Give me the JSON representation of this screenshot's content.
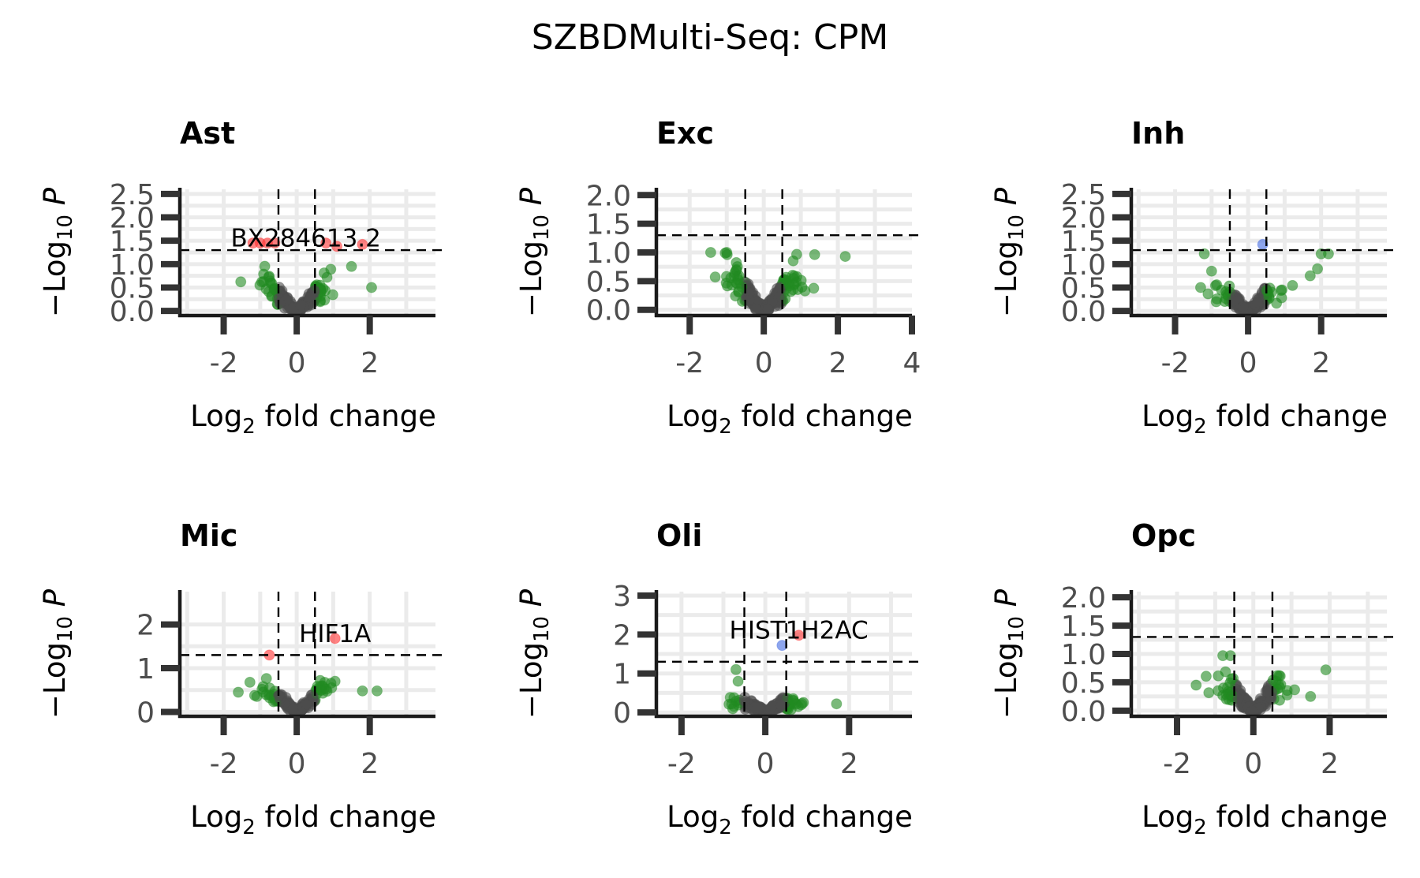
{
  "title": "SZBDMulti-Seq: CPM",
  "colors": {
    "grid": "#ebebeb",
    "axis": "#1a1a1a",
    "tick_label": "#4d4d4d",
    "ns": "#4d4d4d",
    "log2fc_only": "#228b22",
    "p_only": "#4169e1",
    "p_and_log2fc": "#ff3030"
  },
  "chart_data": [
    {
      "type": "scatter",
      "title": "Ast",
      "xlabel": "Log2 fold change",
      "ylabel": "-Log10 P",
      "xlim": [
        -3.2,
        3.8
      ],
      "ylim": [
        -0.1,
        2.6
      ],
      "xticks": [
        "-2",
        "0",
        "2"
      ],
      "xtick_values": [
        -2,
        0,
        2
      ],
      "yticks": [
        "0.0",
        "0.5",
        "1.0",
        "1.5",
        "2.0",
        "2.5"
      ],
      "ytick_values": [
        0,
        0.5,
        1.0,
        1.5,
        2.0,
        2.5
      ],
      "fc_cutoff": 0.5,
      "p_cutoff": 1.3,
      "labels": [
        {
          "text": "BX284613.2",
          "x": 0.25,
          "y": 1.38
        }
      ],
      "highlights": [
        {
          "x": -1.2,
          "y": 1.45,
          "group": "p_and_log2fc"
        },
        {
          "x": -1.0,
          "y": 1.45,
          "group": "p_and_log2fc"
        },
        {
          "x": -0.8,
          "y": 1.45,
          "group": "p_and_log2fc"
        },
        {
          "x": -0.6,
          "y": 1.45,
          "group": "p_and_log2fc"
        },
        {
          "x": 0.8,
          "y": 1.45,
          "group": "p_and_log2fc"
        },
        {
          "x": 1.1,
          "y": 1.38,
          "group": "p_and_log2fc"
        },
        {
          "x": 1.8,
          "y": 1.42,
          "group": "p_and_log2fc"
        },
        {
          "x": 2.05,
          "y": 0.5,
          "group": "log2fc_only"
        },
        {
          "x": 1.5,
          "y": 0.95,
          "group": "log2fc_only"
        }
      ],
      "cloud": {
        "spread": 0.8,
        "maxFC": 1.8,
        "maxP": 1.05,
        "n": 190
      }
    },
    {
      "type": "scatter",
      "title": "Exc",
      "xlabel": "Log2 fold change",
      "ylabel": "-Log10 P",
      "xlim": [
        -2.9,
        4.0
      ],
      "ylim": [
        -0.1,
        2.1
      ],
      "xticks": [
        "-2",
        "0",
        "2",
        "4"
      ],
      "xtick_values": [
        -2,
        0,
        2,
        4
      ],
      "yticks": [
        "0.0",
        "0.5",
        "1.0",
        "1.5",
        "2.0"
      ],
      "ytick_values": [
        0,
        0.5,
        1.0,
        1.5,
        2.0
      ],
      "fc_cutoff": 0.5,
      "p_cutoff": 1.3,
      "labels": [],
      "highlights": [
        {
          "x": 2.2,
          "y": 0.93,
          "group": "log2fc_only"
        },
        {
          "x": -1.0,
          "y": 1.0,
          "group": "log2fc_only"
        }
      ],
      "cloud": {
        "spread": 0.9,
        "maxFC": 1.8,
        "maxP": 1.02,
        "n": 230
      }
    },
    {
      "type": "scatter",
      "title": "Inh",
      "xlabel": "Log2 fold change",
      "ylabel": "-Log10 P",
      "xlim": [
        -3.2,
        3.8
      ],
      "ylim": [
        -0.1,
        2.6
      ],
      "xticks": [
        "-2",
        "0",
        "2"
      ],
      "xtick_values": [
        -2,
        0,
        2
      ],
      "yticks": [
        "0.0",
        "0.5",
        "1.0",
        "1.5",
        "2.0",
        "2.5"
      ],
      "ytick_values": [
        0,
        0.5,
        1.0,
        1.5,
        2.0,
        2.5
      ],
      "fc_cutoff": 0.5,
      "p_cutoff": 1.3,
      "labels": [],
      "highlights": [
        {
          "x": 0.4,
          "y": 1.42,
          "group": "p_only"
        },
        {
          "x": 2.0,
          "y": 1.22,
          "group": "log2fc_only"
        },
        {
          "x": 2.2,
          "y": 1.22,
          "group": "log2fc_only"
        },
        {
          "x": 1.9,
          "y": 0.9,
          "group": "log2fc_only"
        },
        {
          "x": 1.7,
          "y": 0.75,
          "group": "log2fc_only"
        },
        {
          "x": -1.2,
          "y": 1.22,
          "group": "log2fc_only"
        },
        {
          "x": -1.0,
          "y": 0.85,
          "group": "log2fc_only"
        },
        {
          "x": -1.3,
          "y": 0.5,
          "group": "log2fc_only"
        }
      ],
      "cloud": {
        "spread": 0.7,
        "maxFC": 1.5,
        "maxP": 0.6,
        "n": 160
      }
    },
    {
      "type": "scatter",
      "title": "Mic",
      "xlabel": "Log2 fold change",
      "ylabel": "-Log10 P",
      "xlim": [
        -3.2,
        3.8
      ],
      "ylim": [
        -0.1,
        2.75
      ],
      "xticks": [
        "-2",
        "0",
        "2"
      ],
      "xtick_values": [
        -2,
        0,
        2
      ],
      "yticks": [
        "0",
        "1",
        "2"
      ],
      "ytick_values": [
        0,
        1,
        2
      ],
      "fc_cutoff": 0.5,
      "p_cutoff": 1.3,
      "labels": [
        {
          "text": "HIF1A",
          "x": 1.05,
          "y": 1.6
        }
      ],
      "highlights": [
        {
          "x": -0.75,
          "y": 1.3,
          "group": "p_and_log2fc"
        },
        {
          "x": 1.05,
          "y": 1.68,
          "group": "p_and_log2fc"
        },
        {
          "x": 1.8,
          "y": 0.48,
          "group": "log2fc_only"
        },
        {
          "x": 2.2,
          "y": 0.48,
          "group": "log2fc_only"
        },
        {
          "x": -1.6,
          "y": 0.45,
          "group": "log2fc_only"
        }
      ],
      "cloud": {
        "spread": 0.8,
        "maxFC": 1.5,
        "maxP": 0.75,
        "n": 160
      }
    },
    {
      "type": "scatter",
      "title": "Oli",
      "xlabel": "Log2 fold change",
      "ylabel": "-Log10 P",
      "xlim": [
        -2.6,
        3.5
      ],
      "ylim": [
        -0.1,
        3.1
      ],
      "xticks": [
        "-2",
        "0",
        "2"
      ],
      "xtick_values": [
        -2,
        0,
        2
      ],
      "yticks": [
        "0",
        "1",
        "2",
        "3"
      ],
      "ytick_values": [
        0,
        1,
        2,
        3
      ],
      "fc_cutoff": 0.5,
      "p_cutoff": 1.3,
      "labels": [
        {
          "text": "HIST1H2AC",
          "x": 0.8,
          "y": 1.9
        }
      ],
      "highlights": [
        {
          "x": 0.4,
          "y": 1.72,
          "group": "p_only"
        },
        {
          "x": 0.8,
          "y": 1.98,
          "group": "p_and_log2fc"
        },
        {
          "x": -0.7,
          "y": 1.1,
          "group": "log2fc_only"
        },
        {
          "x": -0.65,
          "y": 0.8,
          "group": "log2fc_only"
        },
        {
          "x": 1.7,
          "y": 0.22,
          "group": "log2fc_only"
        }
      ],
      "cloud": {
        "spread": 0.7,
        "maxFC": 1.6,
        "maxP": 0.35,
        "n": 150
      }
    },
    {
      "type": "scatter",
      "title": "Opc",
      "xlabel": "Log2 fold change",
      "ylabel": "-Log10 P",
      "xlim": [
        -3.2,
        3.5
      ],
      "ylim": [
        -0.1,
        2.1
      ],
      "xticks": [
        "-2",
        "0",
        "2"
      ],
      "xtick_values": [
        -2,
        0,
        2
      ],
      "yticks": [
        "0.0",
        "0.5",
        "1.0",
        "1.5",
        "2.0"
      ],
      "ytick_values": [
        0,
        0.5,
        1.0,
        1.5,
        2.0
      ],
      "fc_cutoff": 0.5,
      "p_cutoff": 1.3,
      "labels": [],
      "highlights": [
        {
          "x": -0.8,
          "y": 0.97,
          "group": "log2fc_only"
        },
        {
          "x": -0.6,
          "y": 0.97,
          "group": "log2fc_only"
        },
        {
          "x": 1.9,
          "y": 0.72,
          "group": "log2fc_only"
        },
        {
          "x": 1.5,
          "y": 0.25,
          "group": "log2fc_only"
        },
        {
          "x": -1.5,
          "y": 0.45,
          "group": "log2fc_only"
        }
      ],
      "cloud": {
        "spread": 0.75,
        "maxFC": 1.6,
        "maxP": 0.7,
        "n": 180
      }
    }
  ]
}
